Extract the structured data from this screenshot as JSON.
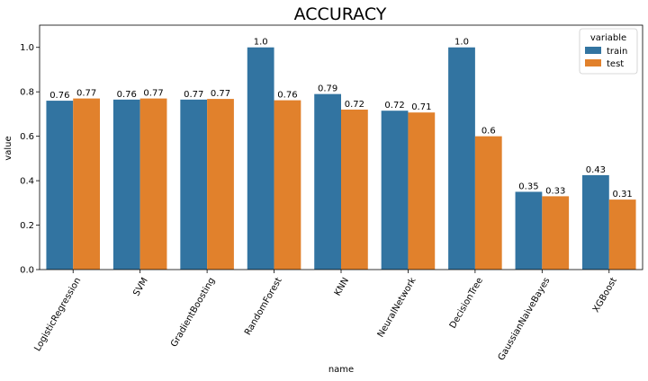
{
  "chart_data": {
    "type": "bar",
    "title": "ACCURACY",
    "xlabel": "name",
    "ylabel": "value",
    "ylim": [
      0,
      1.1
    ],
    "yticks": [
      0.0,
      0.2,
      0.4,
      0.6,
      0.8,
      1.0
    ],
    "ytick_labels": [
      "0.0",
      "0.2",
      "0.4",
      "0.6",
      "0.8",
      "1.0"
    ],
    "categories": [
      "LogisticRegression",
      "SVM",
      "GradientBoosting",
      "RandomForest",
      "KNN",
      "NeuralNetwork",
      "DecisionTree",
      "GaussianNaiveBayes",
      "XGBoost"
    ],
    "series": [
      {
        "name": "train",
        "color": "#3274a1",
        "values": [
          0.76,
          0.765,
          0.765,
          1.0,
          0.79,
          0.715,
          1.0,
          0.35,
          0.425
        ],
        "labels": [
          "0.76",
          "0.76",
          "0.77",
          "1.0",
          "0.79",
          "0.72",
          "1.0",
          "0.35",
          "0.43"
        ]
      },
      {
        "name": "test",
        "color": "#e1812c",
        "values": [
          0.77,
          0.77,
          0.768,
          0.762,
          0.72,
          0.707,
          0.6,
          0.33,
          0.315
        ],
        "labels": [
          "0.77",
          "0.77",
          "0.77",
          "0.76",
          "0.72",
          "0.71",
          "0.6",
          "0.33",
          "0.31"
        ]
      }
    ],
    "legend": {
      "title": "variable",
      "position": "top-right"
    },
    "grid": false
  }
}
